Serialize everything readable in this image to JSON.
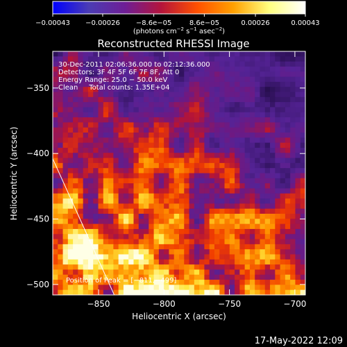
{
  "chart_data": {
    "type": "heatmap",
    "title": "Reconstructed RHESSI Image",
    "xlabel": "Heliocentric X (arcsec)",
    "ylabel": "Heliocentric Y (arcsec)",
    "xlim": [
      -885,
      -692
    ],
    "ylim": [
      -508,
      -322
    ],
    "x_ticks": [
      -850,
      -800,
      -750,
      -700
    ],
    "x_tick_labels": [
      "−850",
      "−800",
      "−750",
      "−700"
    ],
    "y_ticks": [
      -350,
      -400,
      -450,
      -500
    ],
    "y_tick_labels": [
      "−350",
      "−400",
      "−450",
      "−500"
    ],
    "colorbar": {
      "range": [
        -0.00043,
        0.00043
      ],
      "ticks": [
        -0.00043,
        -0.00026,
        -8.6e-05,
        8.6e-05,
        0.00026,
        0.00043
      ],
      "tick_labels": [
        "−0.00043",
        "−0.00026",
        "−8.6e−05",
        "8.6e−05",
        "0.00026",
        "0.00043"
      ],
      "units_prefix": "(photons cm",
      "units_exp1": "−2",
      "units_mid": " s",
      "units_exp2": "−1",
      "units_mid2": " asec",
      "units_exp3": "−2",
      "units_suffix": ")",
      "colors": [
        "#0000ff",
        "#4b3cb4",
        "#6e1e96",
        "#b4143c",
        "#ff5000",
        "#ffa000",
        "#ffff80",
        "#ffffff"
      ]
    },
    "annotations": [
      "30-Dec-2011 02:06:36.000 to 02:12:36.000",
      "Detectors: 3F 4F 5F 6F 7F 8F, Att 0",
      "Energy Range: 25.0 − 50.0 keV",
      "Clean     Total counts: 1.35E+04"
    ],
    "peak_label": "Position of Peak = [−811,−499]",
    "peak": [
      -811,
      -499
    ],
    "limb_line": [
      [
        -885,
        -404
      ],
      [
        -838,
        -508
      ]
    ],
    "field": {
      "rows": 48,
      "cols": 50,
      "seed": 7
    }
  },
  "footer": {
    "timestamp": "17-May-2022 12:09"
  },
  "colors": {
    "background": "#000000",
    "axes": "#ffffff"
  }
}
